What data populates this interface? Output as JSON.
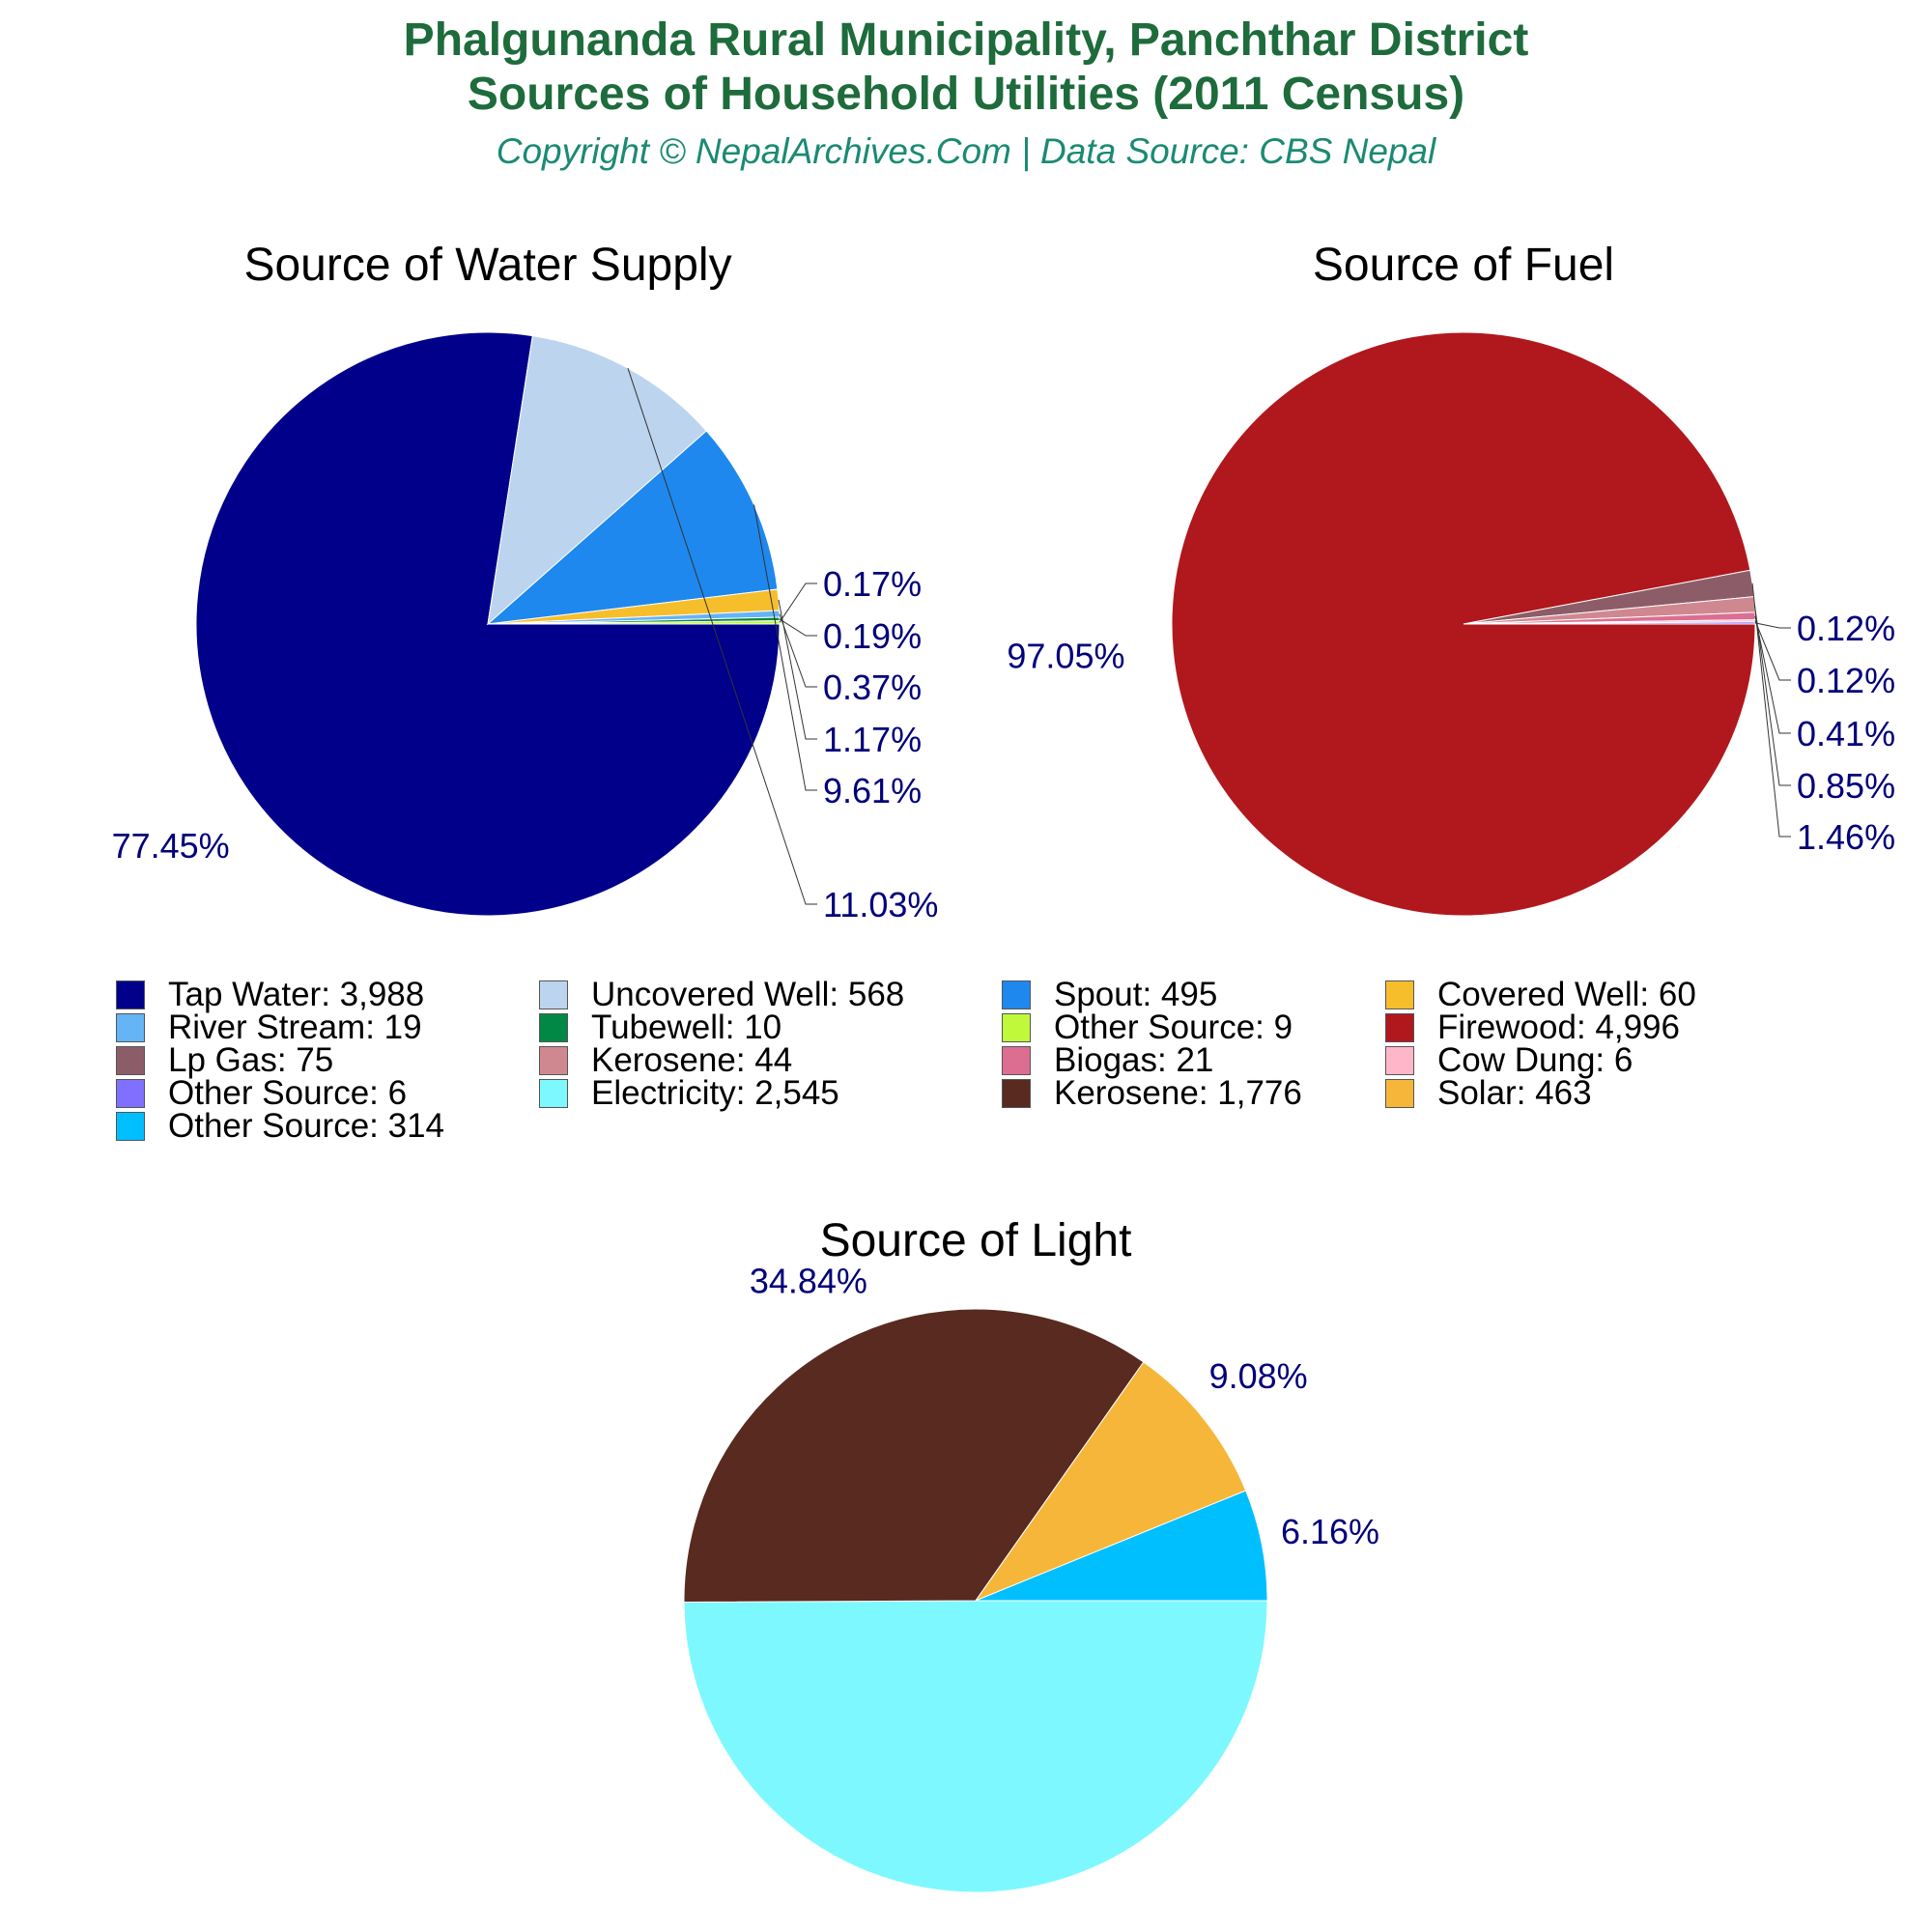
{
  "header": {
    "title_line1": "Phalgunanda Rural Municipality, Panchthar District",
    "title_line2": "Sources of Household Utilities (2011 Census)",
    "copyright": "Copyright © NepalArchives.Com | Data Source: CBS Nepal"
  },
  "chart_data": [
    {
      "type": "pie",
      "title": "Source of Water Supply",
      "slices": [
        {
          "label": "Tap Water",
          "value": 3988,
          "percent": "77.45%",
          "color": "#00008b"
        },
        {
          "label": "Uncovered Well",
          "value": 568,
          "percent": "11.03%",
          "color": "#bcd4ee"
        },
        {
          "label": "Spout",
          "value": 495,
          "percent": "9.61%",
          "color": "#1e88ee"
        },
        {
          "label": "Covered Well",
          "value": 60,
          "percent": "1.17%",
          "color": "#f7be2c"
        },
        {
          "label": "River Stream",
          "value": 19,
          "percent": "0.37%",
          "color": "#64b4f6"
        },
        {
          "label": "Tubewell",
          "value": 10,
          "percent": "0.19%",
          "color": "#008844"
        },
        {
          "label": "Other Source",
          "value": 9,
          "percent": "0.17%",
          "color": "#c0f83a"
        }
      ]
    },
    {
      "type": "pie",
      "title": "Source of Fuel",
      "slices": [
        {
          "label": "Firewood",
          "value": 4996,
          "percent": "97.05%",
          "color": "#b0181e"
        },
        {
          "label": "Lp Gas",
          "value": 75,
          "percent": "1.46%",
          "color": "#8c5d68"
        },
        {
          "label": "Kerosene",
          "value": 44,
          "percent": "0.85%",
          "color": "#d08890"
        },
        {
          "label": "Biogas",
          "value": 21,
          "percent": "0.41%",
          "color": "#dc6e92"
        },
        {
          "label": "Cow Dung",
          "value": 6,
          "percent": "0.12%",
          "color": "#ffb6c8"
        },
        {
          "label": "Other Source",
          "value": 6,
          "percent": "0.12%",
          "color": "#8070ff"
        }
      ]
    },
    {
      "type": "pie",
      "title": "Source of Light",
      "slices": [
        {
          "label": "Electricity",
          "value": 2545,
          "percent": "49.92%",
          "color": "#7ef8ff"
        },
        {
          "label": "Kerosene",
          "value": 1776,
          "percent": "34.84%",
          "color": "#582a20"
        },
        {
          "label": "Solar",
          "value": 463,
          "percent": "9.08%",
          "color": "#f6b63a"
        },
        {
          "label": "Other Source",
          "value": 314,
          "percent": "6.16%",
          "color": "#00bfff"
        }
      ]
    }
  ],
  "legend": [
    {
      "text": "Tap Water: 3,988",
      "color": "#00008b"
    },
    {
      "text": "Uncovered Well: 568",
      "color": "#bcd4ee"
    },
    {
      "text": "Spout: 495",
      "color": "#1e88ee"
    },
    {
      "text": "Covered Well: 60",
      "color": "#f7be2c"
    },
    {
      "text": "River Stream: 19",
      "color": "#64b4f6"
    },
    {
      "text": "Tubewell: 10",
      "color": "#008844"
    },
    {
      "text": "Other Source: 9",
      "color": "#c0f83a"
    },
    {
      "text": "Firewood: 4,996",
      "color": "#b0181e"
    },
    {
      "text": "Lp Gas: 75",
      "color": "#8c5d68"
    },
    {
      "text": "Kerosene: 44",
      "color": "#d08890"
    },
    {
      "text": "Biogas: 21",
      "color": "#dc6e92"
    },
    {
      "text": "Cow Dung: 6",
      "color": "#ffb6c8"
    },
    {
      "text": "Other Source: 6",
      "color": "#8070ff"
    },
    {
      "text": "Electricity: 2,545",
      "color": "#7ef8ff"
    },
    {
      "text": "Kerosene: 1,776",
      "color": "#582a20"
    },
    {
      "text": "Solar: 463",
      "color": "#f6b63a"
    },
    {
      "text": "Other Source: 314",
      "color": "#00bfff"
    }
  ]
}
